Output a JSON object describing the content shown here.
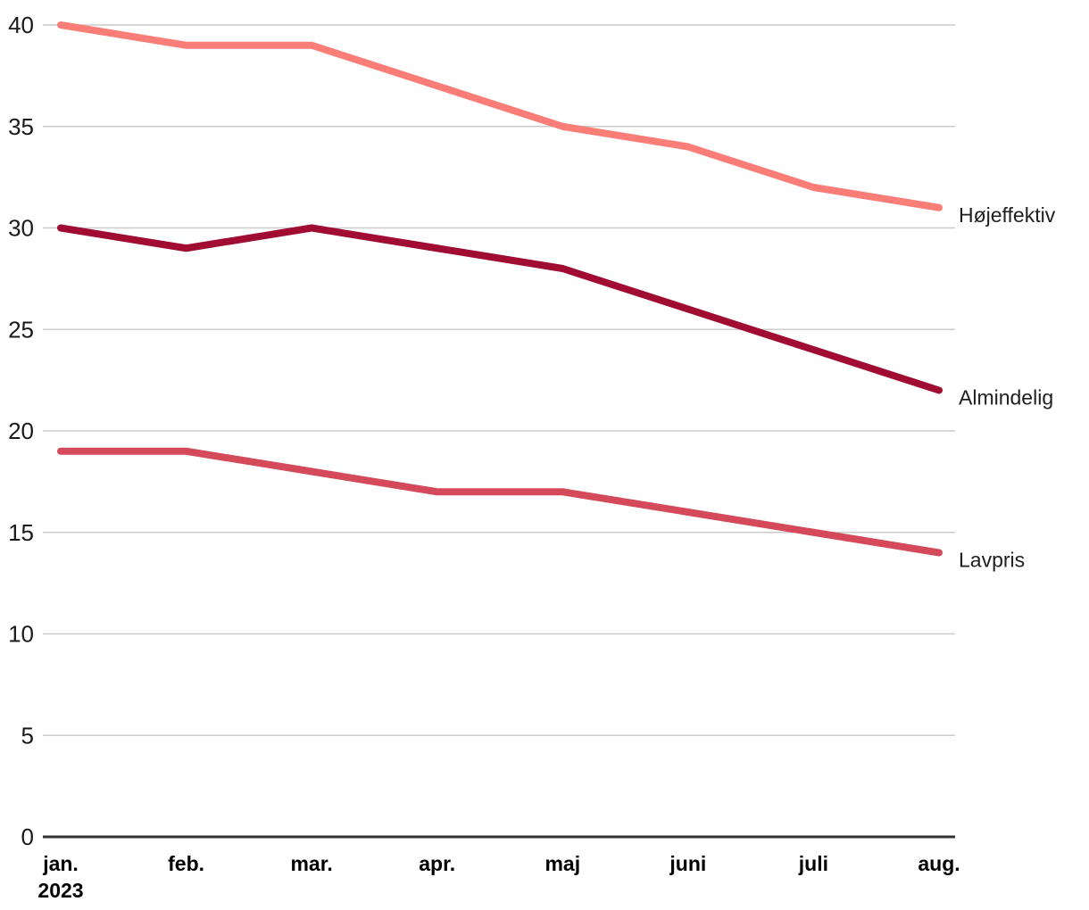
{
  "chart_data": {
    "type": "line",
    "title": "",
    "xlabel": "",
    "ylabel": "",
    "x": [
      "jan.",
      "feb.",
      "mar.",
      "apr.",
      "maj",
      "juni",
      "juli",
      "aug."
    ],
    "x_year_label": {
      "index": 0,
      "text": "2023"
    },
    "series": [
      {
        "name": "Højeffektiv",
        "color": "#FB7D77",
        "values": [
          40,
          39,
          39,
          37,
          35,
          34,
          32,
          31
        ]
      },
      {
        "name": "Almindelig",
        "color": "#A10C33",
        "values": [
          30,
          29,
          30,
          29,
          28,
          26,
          24,
          22
        ]
      },
      {
        "name": "Lavpris",
        "color": "#D54A5A",
        "values": [
          19,
          19,
          18,
          17,
          17,
          16,
          15,
          14
        ]
      }
    ],
    "ylim": [
      0,
      40
    ],
    "yticks": [
      0,
      5,
      10,
      15,
      20,
      25,
      30,
      35,
      40
    ],
    "grid": true,
    "legend_position": "right-of-line-end",
    "colors": {
      "gridline": "#cccccc",
      "axis_line": "#333333",
      "tick_text": "#1a1a1a",
      "background": "#ffffff"
    }
  }
}
